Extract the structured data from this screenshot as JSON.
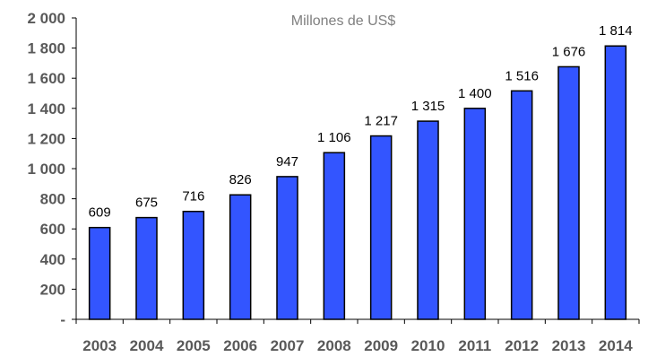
{
  "chart_data": {
    "type": "bar",
    "title": "Millones de US$",
    "categories": [
      "2003",
      "2004",
      "2005",
      "2006",
      "2007",
      "2008",
      "2009",
      "2010",
      "2011",
      "2012",
      "2013",
      "2014"
    ],
    "values": [
      609,
      675,
      716,
      826,
      947,
      1106,
      1217,
      1315,
      1400,
      1516,
      1676,
      1814
    ],
    "data_labels": [
      "609",
      "675",
      "716",
      "826",
      "947",
      "1 106",
      "1 217",
      "1 315",
      "1 400",
      "1 516",
      "1 676",
      "1 814"
    ],
    "y_ticks": [
      0,
      200,
      400,
      600,
      800,
      1000,
      1200,
      1400,
      1600,
      1800,
      2000
    ],
    "y_tick_labels": [
      "-",
      "200",
      "400",
      "600",
      "800",
      "1 000",
      "1 200",
      "1 400",
      "1 600",
      "1 800",
      "2 000"
    ],
    "ylim": [
      0,
      2000
    ],
    "xlabel": "",
    "ylabel": "",
    "grid": false,
    "legend": false,
    "colors": {
      "bar_fill": "#3355ff",
      "bar_stroke": "#000000",
      "axis": "#000000",
      "tick_text": "#595959",
      "title_text": "#7f7f7f"
    }
  }
}
